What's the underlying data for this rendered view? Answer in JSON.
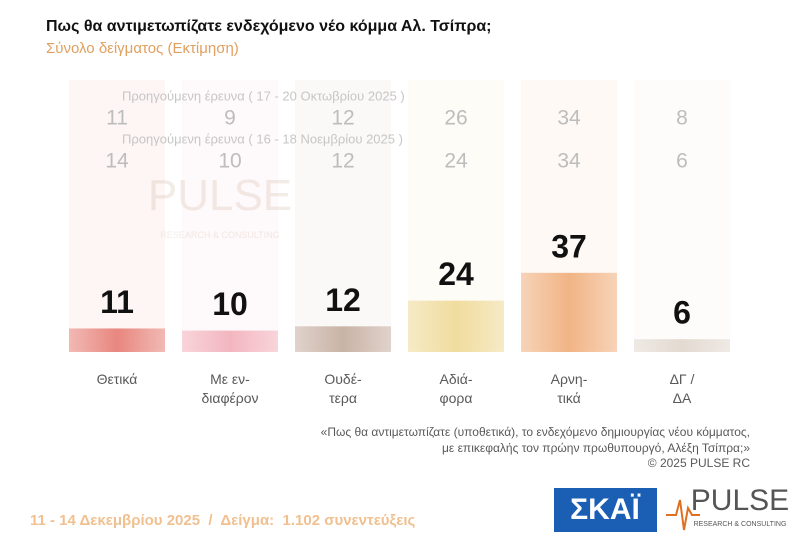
{
  "chart_data": {
    "type": "bar",
    "title": "Πως θα αντιμετωπίζατε ενδεχόμενο νέο κόμμα Αλ. Τσίπρα;",
    "subtitle": "Σύνολο δείγματος  (Εκτίμηση)",
    "categories": [
      "Θετικά",
      "Με εν-\nδιαφέρον",
      "Ουδέ-\nτερα",
      "Αδιά-\nφορα",
      "Αρνη-\nτικά",
      "ΔΓ /\nΔΑ"
    ],
    "values": [
      11,
      10,
      12,
      24,
      37,
      6
    ],
    "colors": [
      "#e8877f",
      "#f3b6c0",
      "#c9b3a6",
      "#f0dc9e",
      "#f1b485",
      "#e3dad1"
    ],
    "previous": [
      {
        "name": "Προηγούμενη έρευνα ( 17 - 20 Οκτωβρίου 2025 )",
        "values": [
          11,
          9,
          12,
          26,
          34,
          8
        ]
      },
      {
        "name": "Προηγούμενη έρευνα ( 16 - 18 Νοεμβρίου 2025 )",
        "values": [
          14,
          10,
          12,
          24,
          34,
          6
        ]
      }
    ]
  },
  "note": "«Πως θα αντιμετωπίζατε (υποθετικά), το ενδεχόμενο δημιουργίας νέου κόμματος,\nμε επικεφαλής τον πρώην πρωθυπουργό, Αλέξη Τσίπρα;»",
  "copyright": "©  2025  PULSE RC",
  "footer": "11 - 14 Δεκεμβρίου 2025  /  Δείγμα:  1.102 συνεντεύξεις",
  "logos": {
    "skai": "ΣΚΑΪ",
    "pulse": "PULSE",
    "pulse_sub": "RESEARCH & CONSULTING"
  }
}
